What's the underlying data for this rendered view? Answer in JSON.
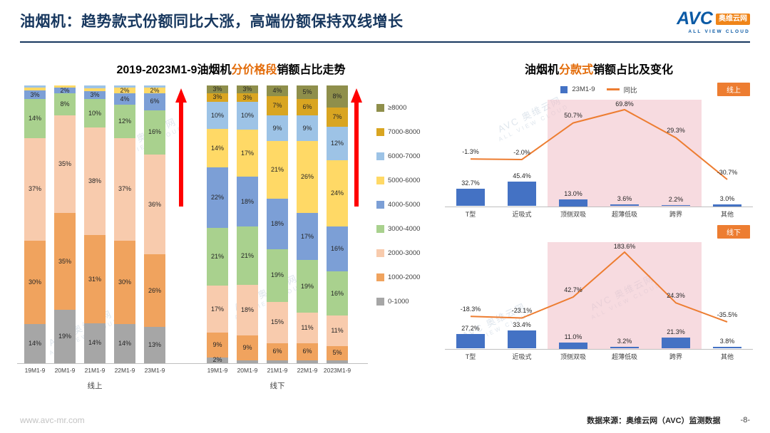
{
  "header": {
    "title": "油烟机：趋势款式份额同比大涨，高端份额保持双线增长",
    "logo": {
      "brand": "AVC",
      "name_cn": "奥维云网",
      "tagline": "ALL VIEW CLOUD"
    }
  },
  "watermark": {
    "line1": "AVC 奥维云网",
    "line2": "ALL VIEW CLOUD"
  },
  "left_chart": {
    "title_prefix": "2019-2023M1-9油烟机",
    "title_highlight": "分价格段",
    "title_suffix": "销额占比走势"
  },
  "right_chart": {
    "title_prefix": "油烟机",
    "title_highlight": "分款式",
    "title_suffix": "销额占比及变化",
    "legend": {
      "bar": "23M1-9",
      "line": "同比"
    }
  },
  "footer": {
    "website": "www.avc-mr.com",
    "source": "数据来源：奥维云网（AVC）监测数据",
    "page": "-8-"
  },
  "chart_data": [
    {
      "type": "bar",
      "subtype": "stacked-100pct",
      "title": "2019-2023M1-9油烟机分价格段销额占比走势",
      "unit": "%",
      "ylim": [
        0,
        100
      ],
      "groups": [
        "线上",
        "线下"
      ],
      "group_of": [
        0,
        0,
        0,
        0,
        0,
        1,
        1,
        1,
        1,
        1
      ],
      "categories": [
        "19M1-9",
        "20M1-9",
        "21M1-9",
        "22M1-9",
        "23M1-9",
        "19M1-9",
        "20M1-9",
        "21M1-9",
        "22M1-9",
        "2023M1-9"
      ],
      "segments": [
        {
          "label": "0-1000",
          "color": "#a6a6a6",
          "values": [
            14,
            19,
            14,
            14,
            13,
            2,
            1,
            1,
            1,
            1
          ]
        },
        {
          "label": "1000-2000",
          "color": "#f0a35e",
          "values": [
            30,
            35,
            31,
            30,
            26,
            9,
            9,
            6,
            6,
            5
          ]
        },
        {
          "label": "2000-3000",
          "color": "#f8cbad",
          "values": [
            37,
            35,
            38,
            37,
            36,
            17,
            18,
            15,
            11,
            11
          ]
        },
        {
          "label": "3000-4000",
          "color": "#a9d18e",
          "values": [
            14,
            8,
            10,
            12,
            16,
            21,
            21,
            19,
            19,
            16
          ]
        },
        {
          "label": "4000-5000",
          "color": "#7c9fd6",
          "values": [
            3,
            2,
            3,
            4,
            6,
            22,
            18,
            18,
            17,
            16
          ]
        },
        {
          "label": "5000-6000",
          "color": "#ffd966",
          "values": [
            1,
            1,
            1,
            2,
            2,
            14,
            17,
            21,
            26,
            24
          ]
        },
        {
          "label": "6000-7000",
          "color": "#9dc3e6",
          "values": [
            1,
            0,
            1,
            1,
            1,
            10,
            10,
            9,
            9,
            12
          ]
        },
        {
          "label": "7000-8000",
          "color": "#d9a521",
          "values": [
            0,
            0,
            0,
            0,
            0,
            3,
            3,
            7,
            6,
            7
          ]
        },
        {
          "label": "≥8000",
          "color": "#8f8f4b",
          "values": [
            0,
            0,
            0,
            0,
            0,
            3,
            3,
            4,
            5,
            8
          ]
        }
      ],
      "annotations": [
        "up-arrow after 线上 23M1-9",
        "up-arrow after 线下 2023M1-9"
      ]
    },
    {
      "type": "bar",
      "subtype": "bar-line-combo",
      "channel_badge": "线上",
      "categories": [
        "T型",
        "近吸式",
        "顶侧双吸",
        "超薄低吸",
        "跨界",
        "其他"
      ],
      "bar_series": {
        "name": "23M1-9",
        "color": "#4472C4",
        "unit": "%",
        "values_pct": [
          32.7,
          45.4,
          13.0,
          3.6,
          2.2,
          3.0
        ]
      },
      "line_series": {
        "name": "同比",
        "color": "#ED7D31",
        "unit": "%",
        "values_pct": [
          -1.3,
          -2.0,
          50.7,
          69.8,
          29.3,
          -30.7
        ]
      },
      "highlight_categories": [
        "顶侧双吸",
        "超薄低吸",
        "跨界"
      ],
      "highlight_range": [
        2,
        4
      ]
    },
    {
      "type": "bar",
      "subtype": "bar-line-combo",
      "channel_badge": "线下",
      "categories": [
        "T型",
        "近吸式",
        "顶侧双吸",
        "超薄低吸",
        "跨界",
        "其他"
      ],
      "bar_series": {
        "name": "23M1-9",
        "color": "#4472C4",
        "unit": "%",
        "values_pct": [
          27.2,
          33.4,
          11.0,
          3.2,
          21.3,
          3.8
        ]
      },
      "line_series": {
        "name": "同比",
        "color": "#ED7D31",
        "unit": "%",
        "values_pct": [
          -18.3,
          -23.1,
          42.7,
          183.6,
          24.3,
          -35.5
        ]
      },
      "highlight_categories": [
        "顶侧双吸",
        "超薄低吸",
        "跨界"
      ],
      "highlight_range": [
        2,
        4
      ]
    }
  ]
}
